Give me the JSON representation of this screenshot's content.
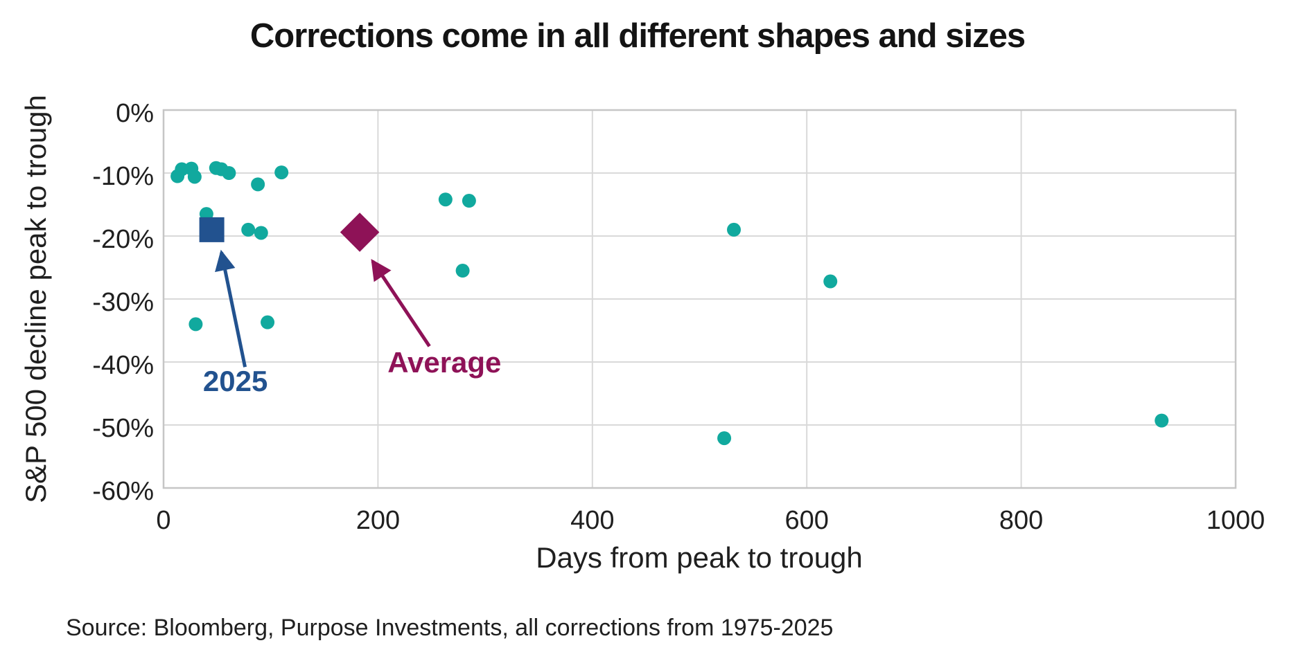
{
  "chart_data": {
    "type": "scatter",
    "title": "Corrections come in all different shapes and sizes",
    "xlabel": "Days from peak to trough",
    "ylabel": "S&P 500 decline peak to trough",
    "source": "Source: Bloomberg, Purpose Investments, all corrections from 1975-2025",
    "xlim": [
      0,
      1000
    ],
    "ylim": [
      -60,
      0
    ],
    "grid": true,
    "legend": "none",
    "x_ticks": [
      {
        "value": 0,
        "label": "0"
      },
      {
        "value": 200,
        "label": "200"
      },
      {
        "value": 400,
        "label": "400"
      },
      {
        "value": 600,
        "label": "600"
      },
      {
        "value": 800,
        "label": "800"
      },
      {
        "value": 1000,
        "label": "1000"
      }
    ],
    "y_ticks": [
      {
        "value": 0,
        "label": "0%"
      },
      {
        "value": -10,
        "label": "-10%"
      },
      {
        "value": -20,
        "label": "-20%"
      },
      {
        "value": -30,
        "label": "-30%"
      },
      {
        "value": -40,
        "label": "-40%"
      },
      {
        "value": -50,
        "label": "-50%"
      },
      {
        "value": -60,
        "label": "-60%"
      }
    ],
    "colors": {
      "corrections": "#11A99E",
      "year2025": "#22528F",
      "average": "#8E1257",
      "gridline": "#D9D9D9",
      "plot_border": "#C6C6C6"
    },
    "series": [
      {
        "name": "All corrections 1975-2025",
        "marker": "circle",
        "color_key": "corrections",
        "points": [
          [
            13,
            -10.5
          ],
          [
            17,
            -9.4
          ],
          [
            26,
            -9.3
          ],
          [
            29,
            -10.6
          ],
          [
            49,
            -9.2
          ],
          [
            54,
            -9.4
          ],
          [
            61,
            -10.0
          ],
          [
            88,
            -11.8
          ],
          [
            110,
            -9.9
          ],
          [
            40,
            -16.5
          ],
          [
            79,
            -19.0
          ],
          [
            91,
            -19.5
          ],
          [
            30,
            -34.0
          ],
          [
            97,
            -33.7
          ],
          [
            263,
            -14.2
          ],
          [
            285,
            -14.4
          ],
          [
            279,
            -25.5
          ],
          [
            532,
            -19.0
          ],
          [
            622,
            -27.2
          ],
          [
            523,
            -52.1
          ],
          [
            931,
            -49.3
          ]
        ]
      },
      {
        "name": "2025",
        "marker": "square",
        "color_key": "year2025",
        "points": [
          [
            45,
            -19.0
          ]
        ]
      },
      {
        "name": "Average",
        "marker": "diamond",
        "color_key": "average",
        "points": [
          [
            183,
            -19.4
          ]
        ]
      }
    ],
    "annotations": [
      {
        "text": "2025",
        "color_key": "year2025",
        "label_at": [
          67,
          -43.1
        ],
        "arrow": {
          "from": [
            76,
            -40.8
          ],
          "to": [
            54,
            -22.6
          ]
        }
      },
      {
        "text": "Average",
        "color_key": "average",
        "label_at": [
          262,
          -40.1
        ],
        "arrow": {
          "from": [
            248,
            -37.5
          ],
          "to": [
            195,
            -24.0
          ]
        }
      }
    ]
  }
}
